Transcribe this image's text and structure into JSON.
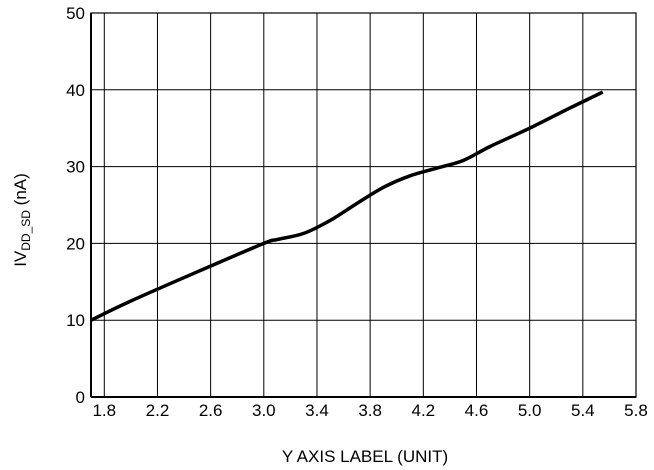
{
  "chart_data": {
    "type": "line",
    "xlabel": "Y AXIS LABEL (UNIT)",
    "ylabel": {
      "prefix": "IV",
      "subscript": "DD_SD",
      "suffix": " (nA)"
    },
    "xlim": [
      1.7,
      5.8
    ],
    "ylim": [
      0,
      50
    ],
    "xticks": [
      "1.8",
      "2.2",
      "2.6",
      "3.0",
      "3.4",
      "3.8",
      "4.2",
      "4.6",
      "5.0",
      "5.4",
      "5.8"
    ],
    "yticks": [
      "0",
      "10",
      "20",
      "30",
      "40",
      "50"
    ],
    "grid": true,
    "series": [
      {
        "color": "#000000",
        "x": [
          1.7,
          2.0,
          2.5,
          3.0,
          3.1,
          3.3,
          3.5,
          3.7,
          3.9,
          4.1,
          4.3,
          4.5,
          4.7,
          5.0,
          5.3,
          5.55
        ],
        "y": [
          10.0,
          12.5,
          16.3,
          20.0,
          20.5,
          21.3,
          23.0,
          25.2,
          27.3,
          28.8,
          29.8,
          30.8,
          32.6,
          35.0,
          37.6,
          39.7
        ]
      }
    ]
  }
}
